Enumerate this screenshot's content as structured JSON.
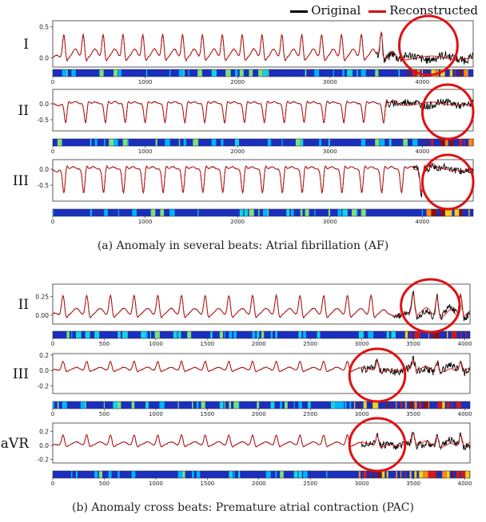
{
  "legend": {
    "original_label": "Original",
    "reconstructed_label": "Reconstructed",
    "original_color": "#000000",
    "reconstructed_color": "#cc1111"
  },
  "colors": {
    "circle": "#e01010",
    "heat_base": "#1a2fbf"
  },
  "captions": {
    "a": "(a)  Anomaly in several beats: Atrial fibrillation (AF)",
    "b": "(b)  Anomaly cross beats: Premature atrial contraction (PAC)"
  },
  "chart_data": [
    {
      "type": "line",
      "panel": "a",
      "lead": "I",
      "xlim": [
        0,
        4550
      ],
      "ylim": [
        -0.15,
        0.6
      ],
      "yticks": [
        "0.5",
        "0.0"
      ],
      "ytick_values": [
        0.5,
        0.0
      ],
      "xticks": [
        "0",
        "1000",
        "2000",
        "3000",
        "4000"
      ],
      "xtick_values": [
        0,
        1000,
        2000,
        3000,
        4000
      ],
      "beat_times": [
        120,
        330,
        545,
        760,
        975,
        1190,
        1405,
        1620,
        1835,
        2050,
        2265,
        2480,
        2695,
        2910,
        3125,
        3340,
        3555
      ],
      "anomaly_from": 3500,
      "spike_amp": 0.38,
      "anomaly_window": [
        3750,
        4380
      ],
      "series": [
        {
          "name": "Original"
        },
        {
          "name": "Reconstructed"
        }
      ]
    },
    {
      "type": "line",
      "panel": "a",
      "lead": "II",
      "xlim": [
        0,
        4550
      ],
      "ylim": [
        -0.85,
        0.45
      ],
      "yticks": [
        "0.0",
        "-0.5"
      ],
      "ytick_values": [
        0.0,
        -0.5
      ],
      "xticks": [
        "0",
        "1000",
        "2000",
        "3000",
        "4000"
      ],
      "xtick_values": [
        0,
        1000,
        2000,
        3000,
        4000
      ],
      "beat_times": [
        140,
        355,
        570,
        785,
        1000,
        1215,
        1430,
        1645,
        1860,
        2075,
        2290,
        2505,
        2720,
        2935,
        3150,
        3365,
        3580
      ],
      "anomaly_from": 3600,
      "spike_amp": -0.6,
      "anomaly_window": [
        4000,
        4550
      ],
      "series": [
        {
          "name": "Original"
        },
        {
          "name": "Reconstructed"
        }
      ]
    },
    {
      "type": "line",
      "panel": "a",
      "lead": "III",
      "xlim": [
        0,
        4550
      ],
      "ylim": [
        -1.0,
        0.3
      ],
      "yticks": [
        "0.0",
        "-0.5"
      ],
      "ytick_values": [
        0.0,
        -0.5
      ],
      "xticks": [
        "0",
        "1000",
        "2000",
        "3000",
        "4000"
      ],
      "xtick_values": [
        0,
        1000,
        2000,
        3000,
        4000
      ],
      "beat_times": [
        120,
        335,
        550,
        765,
        980,
        1195,
        1410,
        1625,
        1840,
        2055,
        2270,
        2485,
        2700,
        2915,
        3130,
        3345,
        3560,
        3775,
        3990
      ],
      "anomaly_from": 3900,
      "spike_amp": -0.75,
      "anomaly_window": [
        4000,
        4550
      ],
      "series": [
        {
          "name": "Original"
        },
        {
          "name": "Reconstructed"
        }
      ]
    },
    {
      "type": "line",
      "panel": "b",
      "lead": "II",
      "xlim": [
        0,
        4050
      ],
      "ylim": [
        -0.12,
        0.42
      ],
      "yticks": [
        "0.25",
        "0.00"
      ],
      "ytick_values": [
        0.25,
        0.0
      ],
      "xticks": [
        "0",
        "500",
        "1000",
        "1500",
        "2000",
        "2500",
        "3000",
        "3500",
        "4000"
      ],
      "xtick_values": [
        0,
        500,
        1000,
        1500,
        2000,
        2500,
        3000,
        3500,
        4000
      ],
      "beat_times": [
        100,
        330,
        560,
        790,
        1020,
        1250,
        1480,
        1710,
        1940,
        2170,
        2400,
        2630,
        2860,
        3090,
        3500,
        3730,
        3960
      ],
      "anomaly_from": 3300,
      "spike_amp": 0.27,
      "anomaly_window": [
        3380,
        3950
      ],
      "series": [
        {
          "name": "Original"
        },
        {
          "name": "Reconstructed"
        }
      ]
    },
    {
      "type": "line",
      "panel": "b",
      "lead": "III",
      "xlim": [
        0,
        4050
      ],
      "ylim": [
        -0.3,
        0.22
      ],
      "yticks": [
        "0.2",
        "0.0",
        "-0.2"
      ],
      "ytick_values": [
        0.2,
        0.0,
        -0.2
      ],
      "xticks": [
        "0",
        "500",
        "1000",
        "1500",
        "2000",
        "2500",
        "3000",
        "3500",
        "4000"
      ],
      "xtick_values": [
        0,
        500,
        1000,
        1500,
        2000,
        2500,
        3000,
        3500,
        4000
      ],
      "beat_times": [
        100,
        330,
        560,
        790,
        1020,
        1250,
        1480,
        1710,
        1940,
        2170,
        2400,
        2630,
        2860,
        3150,
        3500,
        3730,
        3960
      ],
      "anomaly_from": 3000,
      "spike_amp": 0.12,
      "anomaly_window": [
        2880,
        3420
      ],
      "series": [
        {
          "name": "Original"
        },
        {
          "name": "Reconstructed"
        }
      ]
    },
    {
      "type": "line",
      "panel": "b",
      "lead": "aVR",
      "xlim": [
        0,
        4050
      ],
      "ylim": [
        -0.25,
        0.32
      ],
      "yticks": [
        "0.2",
        "0.0",
        "-0.2"
      ],
      "ytick_values": [
        0.2,
        0.0,
        -0.2
      ],
      "xticks": [
        "0",
        "500",
        "1000",
        "1500",
        "2000",
        "2500",
        "3000",
        "3500",
        "4000"
      ],
      "xtick_values": [
        0,
        500,
        1000,
        1500,
        2000,
        2500,
        3000,
        3500,
        4000
      ],
      "beat_times": [
        100,
        330,
        560,
        790,
        1020,
        1250,
        1480,
        1710,
        1940,
        2170,
        2400,
        2630,
        2860,
        3150,
        3500,
        3730,
        3960
      ],
      "anomaly_from": 3000,
      "spike_amp": 0.15,
      "anomaly_window": [
        2880,
        3420
      ],
      "series": [
        {
          "name": "Original"
        },
        {
          "name": "Reconstructed"
        }
      ]
    }
  ]
}
